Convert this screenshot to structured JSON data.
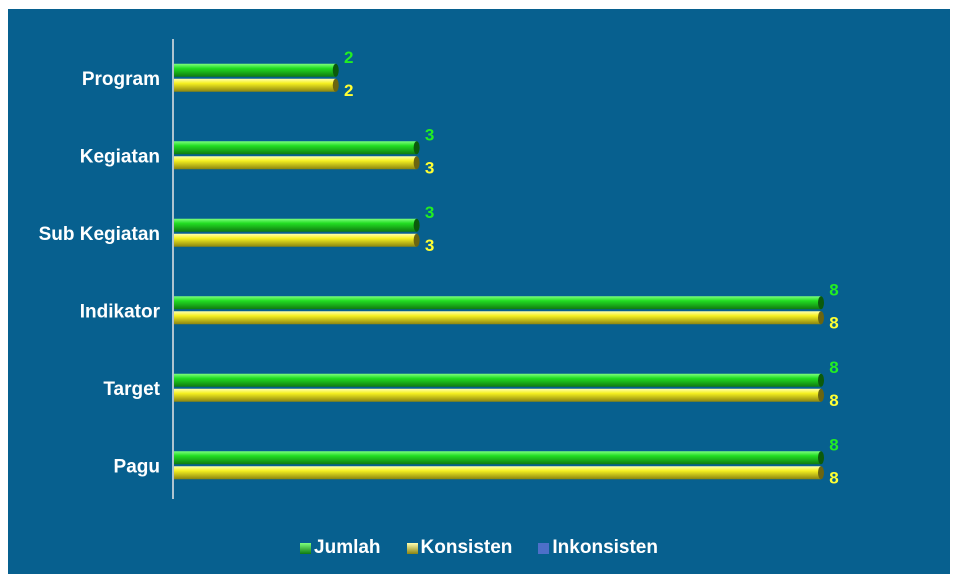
{
  "chart_data": {
    "type": "bar",
    "orientation": "horizontal",
    "categories": [
      "Program",
      "Kegiatan",
      "Sub Kegiatan",
      "Indikator",
      "Target",
      "Pagu"
    ],
    "series": [
      {
        "name": "Jumlah",
        "color": "#22dd22",
        "label_color": "#22ee22",
        "values": [
          2,
          3,
          3,
          8,
          8,
          8
        ]
      },
      {
        "name": "Konsisten",
        "color": "#ffff22",
        "label_color": "#ffff33",
        "values": [
          2,
          3,
          3,
          8,
          8,
          8
        ]
      },
      {
        "name": "Inkonsisten",
        "color": "#4d6fc9",
        "label_color": "#4d6fc9",
        "values": [
          0,
          0,
          0,
          0,
          0,
          0
        ]
      }
    ],
    "xlim": [
      0,
      8
    ],
    "grid": false,
    "legend_position": "bottom",
    "background_color": "#07608f"
  }
}
